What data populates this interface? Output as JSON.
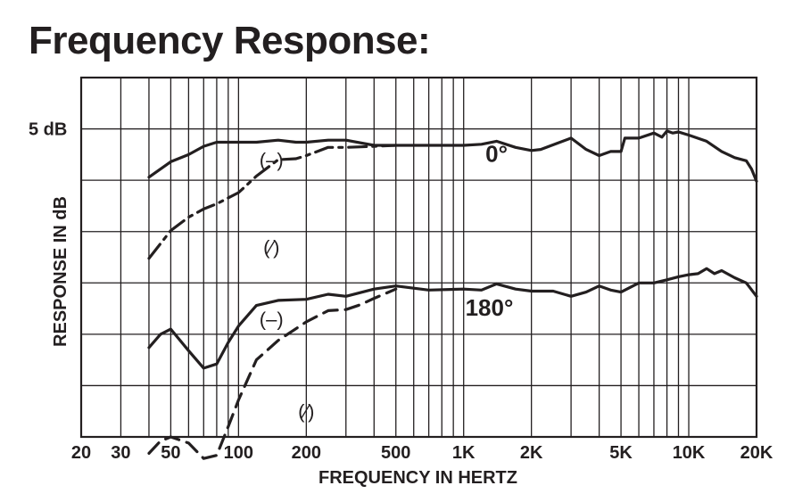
{
  "chart_data": {
    "type": "line",
    "title": "Frequency Response:",
    "xlabel": "FREQUENCY IN HERTZ",
    "ylabel": "RESPONSE IN dB",
    "x_scale": "log",
    "xlim": [
      20,
      20000
    ],
    "ylim": [
      -25,
      10
    ],
    "grid": true,
    "x_ticks": [
      {
        "value": 20,
        "label": "20"
      },
      {
        "value": 30,
        "label": "30"
      },
      {
        "value": 50,
        "label": "50"
      },
      {
        "value": 100,
        "label": "100"
      },
      {
        "value": 200,
        "label": "200"
      },
      {
        "value": 500,
        "label": "500"
      },
      {
        "value": 1000,
        "label": "1K"
      },
      {
        "value": 2000,
        "label": "2K"
      },
      {
        "value": 5000,
        "label": "5K"
      },
      {
        "value": 10000,
        "label": "10K"
      },
      {
        "value": 20000,
        "label": "20K"
      }
    ],
    "y_tick_label": {
      "value": 5,
      "label": "5 dB"
    },
    "annotations": [
      {
        "text": "0°",
        "x": 1400,
        "y": 2.5
      },
      {
        "text": "180°",
        "x": 1300,
        "y": -12.5
      },
      {
        "text": "(–)",
        "x": 140,
        "y": 2.0
      },
      {
        "text": "(⁄)",
        "x": 140,
        "y": -6.5
      },
      {
        "text": "(–)",
        "x": 140,
        "y": -13.5
      },
      {
        "text": "(⁄)",
        "x": 200,
        "y": -22.5
      }
    ],
    "series": [
      {
        "style": "solid",
        "x": [
          40,
          50,
          60,
          70,
          80,
          100,
          120,
          150,
          180,
          200,
          250,
          300,
          400,
          500,
          700,
          1000,
          1200,
          1400,
          1700,
          2000,
          2200,
          2600,
          3000,
          3500,
          4000,
          4500,
          5000,
          5200,
          6000,
          7000,
          7600,
          8000,
          8500,
          9000,
          10000,
          12000,
          14000,
          16000,
          18000,
          19000,
          20000
        ],
        "y": [
          0.3,
          1.8,
          2.5,
          3.3,
          3.7,
          3.7,
          3.7,
          3.9,
          3.7,
          3.7,
          3.9,
          3.9,
          3.4,
          3.4,
          3.4,
          3.4,
          3.5,
          3.8,
          3.2,
          2.9,
          3.0,
          3.6,
          4.1,
          3.0,
          2.4,
          2.8,
          2.8,
          4.1,
          4.1,
          4.6,
          4.2,
          4.8,
          4.6,
          4.7,
          4.4,
          3.8,
          2.8,
          2.2,
          1.9,
          1.1,
          -0.1
        ]
      },
      {
        "style": "dashdot",
        "x": [
          40,
          50,
          60,
          70,
          80,
          100,
          120,
          150,
          180,
          200,
          250,
          300,
          400,
          500
        ],
        "y": [
          -7.6,
          -4.9,
          -3.6,
          -2.8,
          -2.3,
          -1.2,
          0.4,
          2.0,
          2.1,
          2.4,
          3.2,
          3.2,
          3.3,
          3.4
        ]
      },
      {
        "style": "solid",
        "x": [
          40,
          45,
          50,
          60,
          70,
          80,
          90,
          100,
          120,
          150,
          200,
          250,
          300,
          400,
          500,
          700,
          1000,
          1200,
          1400,
          1700,
          2000,
          2500,
          3000,
          3500,
          4000,
          4500,
          5000,
          6000,
          7000,
          8000,
          9000,
          10000,
          11000,
          12000,
          13000,
          14000,
          16000,
          18000,
          20000
        ],
        "y": [
          -16.3,
          -15.0,
          -14.5,
          -16.6,
          -18.3,
          -17.9,
          -15.8,
          -14.2,
          -12.2,
          -11.7,
          -11.6,
          -11.1,
          -11.3,
          -10.6,
          -10.3,
          -10.7,
          -10.6,
          -10.7,
          -10.1,
          -10.6,
          -10.8,
          -10.8,
          -11.3,
          -10.9,
          -10.3,
          -10.7,
          -10.9,
          -10.0,
          -10.0,
          -9.7,
          -9.4,
          -9.2,
          -9.1,
          -8.6,
          -9.1,
          -8.8,
          -9.5,
          -10.0,
          -11.3
        ]
      },
      {
        "style": "dashed",
        "x": [
          40,
          45,
          50,
          60,
          70,
          80,
          90,
          100,
          120,
          150,
          200,
          250,
          300,
          350,
          400,
          500
        ],
        "y": [
          -26.6,
          -25.4,
          -25.0,
          -25.6,
          -27.1,
          -26.8,
          -24.0,
          -21.4,
          -17.5,
          -15.6,
          -13.8,
          -12.7,
          -12.6,
          -12.1,
          -11.5,
          -10.6
        ]
      }
    ]
  }
}
